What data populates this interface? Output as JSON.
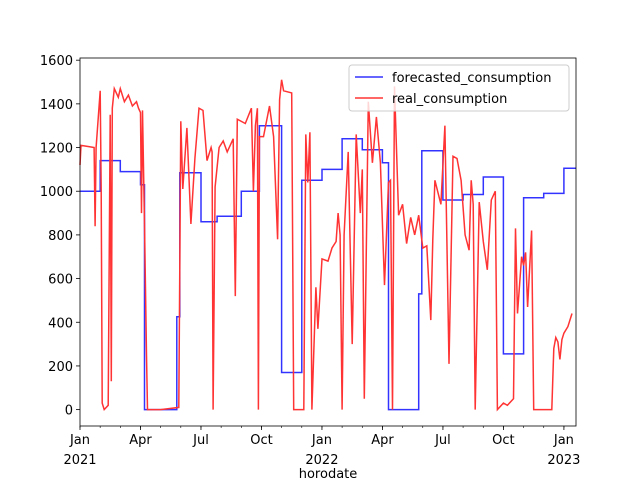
{
  "chart_data": {
    "type": "line",
    "x_label": "horodate",
    "xlim": [
      0,
      24.6
    ],
    "xticks": [
      {
        "value": 0,
        "label": "Jan"
      },
      {
        "value": 3,
        "label": "Apr"
      },
      {
        "value": 6,
        "label": "Jul"
      },
      {
        "value": 9,
        "label": "Oct"
      },
      {
        "value": 12,
        "label": "Jan"
      },
      {
        "value": 15,
        "label": "Apr"
      },
      {
        "value": 18,
        "label": "Jul"
      },
      {
        "value": 21,
        "label": "Oct"
      },
      {
        "value": 24,
        "label": "Jan"
      }
    ],
    "year_ticks": [
      {
        "value": 0,
        "label": "2021"
      },
      {
        "value": 12,
        "label": "2022"
      },
      {
        "value": 24,
        "label": "2023"
      }
    ],
    "ylim": [
      -75,
      1610
    ],
    "yticks": [
      0,
      200,
      400,
      600,
      800,
      1000,
      1200,
      1400,
      1600
    ],
    "legend": "upper right",
    "series": [
      {
        "name": "forecasted_consumption",
        "color": "#3333ff",
        "x": [
          0,
          1,
          1,
          2,
          2,
          3,
          3,
          3.2,
          3.2,
          4.8,
          4.8,
          4.95,
          4.95,
          6,
          6,
          6.8,
          6.8,
          8,
          8,
          8.9,
          8.9,
          10,
          10,
          11,
          11,
          12,
          12,
          13,
          13,
          14,
          14,
          15,
          15,
          15.3,
          15.3,
          16.8,
          16.8,
          16.95,
          16.95,
          18,
          18,
          19,
          19,
          20,
          20,
          21,
          21,
          22,
          22,
          23,
          23,
          24,
          24,
          24.6
        ],
        "values": [
          1000,
          1000,
          1140,
          1140,
          1090,
          1090,
          1030,
          1030,
          0,
          0,
          425,
          425,
          1085,
          1085,
          860,
          860,
          885,
          885,
          1000,
          1000,
          1300,
          1300,
          170,
          170,
          1050,
          1050,
          1100,
          1100,
          1240,
          1240,
          1190,
          1190,
          1130,
          1130,
          0,
          0,
          530,
          530,
          1185,
          1185,
          960,
          960,
          985,
          985,
          1065,
          1065,
          255,
          255,
          970,
          970,
          990,
          990,
          1105,
          1105
        ]
      },
      {
        "name": "real_consumption",
        "color": "#ff3333",
        "x": [
          0,
          0.05,
          0.4,
          0.7,
          0.75,
          0.8,
          1,
          1.05,
          1.1,
          1.2,
          1.4,
          1.5,
          1.55,
          1.6,
          1.7,
          1.9,
          2,
          2.2,
          2.4,
          2.6,
          2.8,
          2.9,
          3,
          3.05,
          3.1,
          3.2,
          3.3,
          3.35,
          4,
          4.9,
          5,
          5.1,
          5.3,
          5.5,
          5.7,
          5.9,
          6.1,
          6.3,
          6.5,
          6.55,
          6.6,
          6.7,
          6.9,
          7.1,
          7.3,
          7.6,
          7.7,
          7.8,
          8.2,
          8.5,
          8.6,
          8.7,
          8.8,
          8.85,
          8.9,
          9.1,
          9.4,
          9.6,
          9.8,
          9.9,
          10,
          10.1,
          10.5,
          10.6,
          11.1,
          11.2,
          11.3,
          11.4,
          11.5,
          11.7,
          11.8,
          12,
          12.3,
          12.5,
          12.7,
          12.8,
          12.9,
          13,
          13.1,
          13.3,
          13.5,
          13.7,
          13.9,
          14,
          14.1,
          14.3,
          14.5,
          14.7,
          14.9,
          15.1,
          15.3,
          15.4,
          15.5,
          15.6,
          15.8,
          16,
          16.2,
          16.4,
          16.6,
          16.8,
          17,
          17.2,
          17.4,
          17.5,
          17.6,
          17.9,
          18.1,
          18.3,
          18.5,
          18.7,
          18.9,
          19.1,
          19.3,
          19.4,
          19.5,
          19.6,
          19.8,
          20,
          20.2,
          20.4,
          20.6,
          20.7,
          21,
          21.2,
          21.5,
          21.6,
          21.7,
          21.9,
          22,
          22.1,
          22.2,
          22.4,
          22.5,
          23,
          23.4,
          23.5,
          23.6,
          23.7,
          23.8,
          23.9,
          24,
          24.2,
          24.4
        ],
        "values": [
          1120,
          1210,
          1205,
          1200,
          840,
          1200,
          1460,
          1000,
          30,
          0,
          20,
          1350,
          130,
          1380,
          1470,
          1430,
          1470,
          1410,
          1440,
          1390,
          1410,
          1380,
          1360,
          900,
          1370,
          850,
          250,
          0,
          0,
          10,
          1320,
          1010,
          1290,
          850,
          1150,
          1380,
          1370,
          1140,
          1200,
          1180,
          0,
          1020,
          1200,
          1230,
          1180,
          1240,
          520,
          1330,
          1310,
          1380,
          1000,
          1300,
          1380,
          0,
          1250,
          1250,
          1390,
          1250,
          780,
          1420,
          1510,
          1460,
          1450,
          0,
          0,
          1260,
          1040,
          1270,
          0,
          560,
          370,
          690,
          680,
          740,
          770,
          900,
          800,
          0,
          800,
          1180,
          300,
          1260,
          900,
          1100,
          50,
          1410,
          1130,
          1340,
          1130,
          570,
          1040,
          1050,
          0,
          1480,
          890,
          940,
          760,
          880,
          800,
          890,
          740,
          750,
          410,
          780,
          1050,
          940,
          1300,
          210,
          1160,
          1150,
          1050,
          800,
          730,
          1050,
          940,
          0,
          950,
          770,
          640,
          960,
          1000,
          0,
          30,
          20,
          50,
          830,
          440,
          700,
          660,
          720,
          470,
          820,
          0,
          0,
          0,
          280,
          330,
          310,
          230,
          320,
          350,
          380,
          440
        ]
      }
    ]
  }
}
